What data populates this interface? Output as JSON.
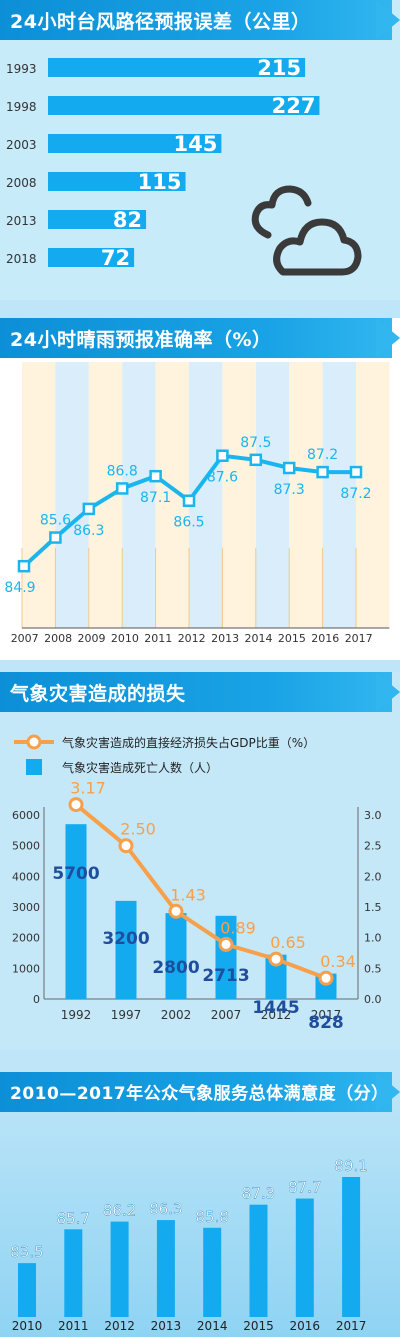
{
  "colors": {
    "banner": "#1aa3e6",
    "bar": "#14aaf0",
    "line": "#1ab5ee",
    "orange": "#f6a04c",
    "navy": "#1f4e9f",
    "bg": "#bfe6f8"
  },
  "icons": [
    "cloud-icon"
  ],
  "chart_data": [
    {
      "type": "bar",
      "title": "24小时台风路径预报误差（公里）",
      "orientation": "horizontal",
      "categories": [
        "1993",
        "1998",
        "2003",
        "2008",
        "2013",
        "2018"
      ],
      "values": [
        215,
        227,
        145,
        115,
        82,
        72
      ],
      "labels": [
        "215",
        "227",
        "145",
        "115",
        "82",
        "72"
      ],
      "xlim": [
        0,
        240
      ]
    },
    {
      "type": "line",
      "title": "24小时晴雨预报准确率（%）",
      "categories": [
        "2007",
        "2008",
        "2009",
        "2010",
        "2011",
        "2012",
        "2013",
        "2014",
        "2015",
        "2016",
        "2017"
      ],
      "values": [
        84.9,
        85.6,
        86.3,
        86.8,
        87.1,
        86.5,
        87.6,
        87.5,
        87.3,
        87.2,
        87.2
      ],
      "labels": [
        "84.9",
        "85.6",
        "86.3",
        "86.8",
        "87.1",
        "86.5",
        "87.6",
        "87.5",
        "87.3",
        "87.2",
        "87.2"
      ],
      "ylim": [
        84.0,
        88.4
      ]
    },
    {
      "type": "bar",
      "title": "气象灾害造成的损失",
      "categories": [
        "1992",
        "1997",
        "2002",
        "2007",
        "2012",
        "2017"
      ],
      "series": [
        {
          "name": "气象灾害造成死亡人数（人）",
          "type": "bar",
          "axis": "left",
          "values": [
            5700,
            3200,
            2800,
            2713,
            1445,
            828
          ],
          "labels": [
            "5700",
            "3200",
            "2800",
            "2713",
            "1445",
            "828"
          ]
        },
        {
          "name": "气象灾害造成的直接经济损失占GDP比重（%）",
          "type": "line",
          "axis": "right",
          "values": [
            3.17,
            2.5,
            1.43,
            0.89,
            0.65,
            0.34
          ],
          "labels": [
            "3.17",
            "2.50",
            "1.43",
            "0.89",
            "0.65",
            "0.34"
          ]
        }
      ],
      "left_axis": {
        "ylim": [
          0,
          6000
        ],
        "ticks": [
          "0",
          "1000",
          "2000",
          "3000",
          "4000",
          "5000",
          "6000"
        ]
      },
      "right_axis": {
        "ylim": [
          0,
          3.0
        ],
        "ticks": [
          "0.0",
          "0.5",
          "1.0",
          "1.5",
          "2.0",
          "2.5",
          "3.0"
        ]
      },
      "legend_position": "top-left"
    },
    {
      "type": "bar",
      "title": "2010—2017年公众气象服务总体满意度（分）",
      "categories": [
        "2010",
        "2011",
        "2012",
        "2013",
        "2014",
        "2015",
        "2016",
        "2017"
      ],
      "values": [
        83.5,
        85.7,
        86.2,
        86.3,
        85.8,
        87.3,
        87.7,
        89.1
      ],
      "labels": [
        "83.5",
        "85.7",
        "86.2",
        "86.3",
        "85.8",
        "87.3",
        "87.7",
        "89.1"
      ]
    }
  ]
}
